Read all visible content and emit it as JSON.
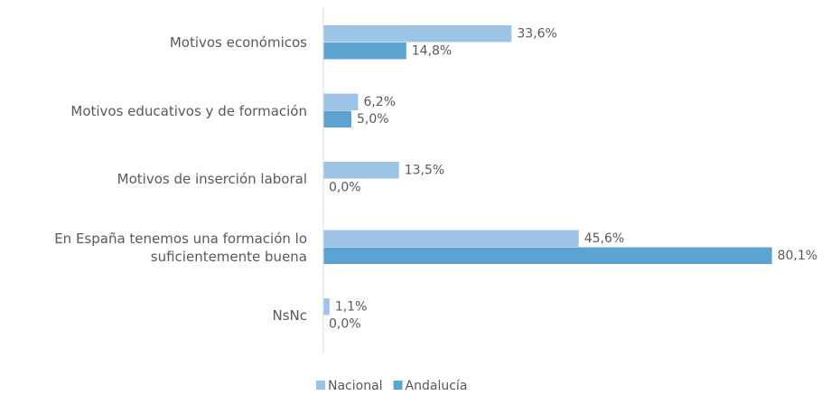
{
  "chart_data": {
    "type": "hbar",
    "categories": [
      "Motivos económicos",
      "Motivos educativos y de formación",
      "Motivos de inserción laboral",
      "En España tenemos una formación lo suficientemente buena",
      "NsNc"
    ],
    "series": [
      {
        "name": "Nacional",
        "color": "#9dc3e6",
        "values": [
          33.6,
          6.2,
          13.5,
          45.6,
          1.1
        ],
        "value_labels": [
          "33,6%",
          "6,2%",
          "13,5%",
          "45,6%",
          "1,1%"
        ]
      },
      {
        "name": "Andalucía",
        "color": "#5ba3d0",
        "values": [
          14.8,
          5.0,
          0.0,
          80.1,
          0.0
        ],
        "value_labels": [
          "14,8%",
          "5,0%",
          "0,0%",
          "80,1%",
          "0,0%"
        ]
      }
    ],
    "xlim": [
      0,
      80
    ],
    "legend": "bottom"
  }
}
